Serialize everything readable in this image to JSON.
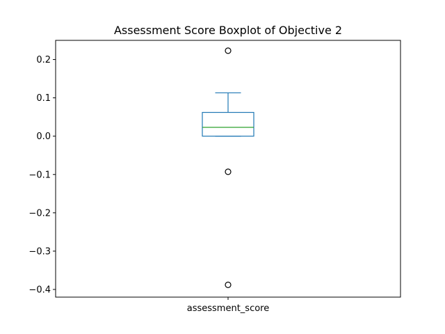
{
  "chart_data": {
    "type": "box",
    "title": "Assessment Score Boxplot of Objective 2",
    "xlabel": "",
    "ylabel": "",
    "categories": [
      "assessment_score"
    ],
    "ylim": [
      -0.42,
      0.25
    ],
    "yticks": [
      0.2,
      0.1,
      0.0,
      -0.1,
      -0.2,
      -0.3,
      -0.4
    ],
    "ytick_labels": [
      "0.2",
      "0.1",
      "0.0",
      "−0.1",
      "−0.2",
      "−0.3",
      "−0.4"
    ],
    "grid": false,
    "boxes": [
      {
        "category": "assessment_score",
        "whisker_low": 0.0,
        "q1": 0.0,
        "median": 0.023,
        "q3": 0.062,
        "whisker_high": 0.113,
        "outliers": [
          0.223,
          -0.093,
          -0.388
        ]
      }
    ],
    "colors": {
      "box": "#1f77b4",
      "whisker": "#1f77b4",
      "median": "#2ca02c",
      "outlier": "#000000"
    }
  }
}
